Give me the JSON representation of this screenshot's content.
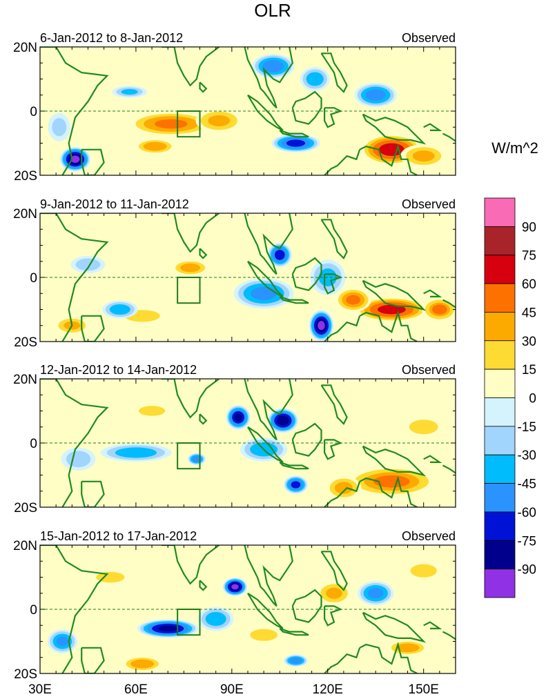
{
  "chart_data": {
    "type": "heatmap",
    "title": "OLR",
    "units_label": "W/m^2",
    "x_ticks": [
      {
        "label": "30E",
        "value": 30
      },
      {
        "label": "60E",
        "value": 60
      },
      {
        "label": "90E",
        "value": 90
      },
      {
        "label": "120E",
        "value": 120
      },
      {
        "label": "150E",
        "value": 150
      }
    ],
    "y_ticks": [
      {
        "label": "20N",
        "value": 20
      },
      {
        "label": "0",
        "value": 0
      },
      {
        "label": "20S",
        "value": -20
      }
    ],
    "xlim": [
      30,
      160
    ],
    "ylim": [
      -20,
      20
    ],
    "box_region": {
      "lon": [
        73,
        80
      ],
      "lat": [
        -8,
        0
      ]
    },
    "panels": [
      {
        "period": "6-Jan-2012 to 8-Jan-2012",
        "label": "Observed",
        "anomalies": [
          {
            "lon": 71,
            "lat": -4,
            "value": 52,
            "rx": 14,
            "ry": 4
          },
          {
            "lon": 86,
            "lat": -3,
            "value": 38,
            "rx": 8,
            "ry": 4
          },
          {
            "lon": 66,
            "lat": -11,
            "value": 30,
            "rx": 8,
            "ry": 3
          },
          {
            "lon": 140,
            "lat": -12,
            "value": 72,
            "rx": 10,
            "ry": 5
          },
          {
            "lon": 150,
            "lat": -14,
            "value": 35,
            "rx": 8,
            "ry": 4
          },
          {
            "lon": 41,
            "lat": -15,
            "value": -92,
            "rx": 5,
            "ry": 4
          },
          {
            "lon": 110,
            "lat": -10,
            "value": -70,
            "rx": 8,
            "ry": 3
          },
          {
            "lon": 103,
            "lat": 14,
            "value": -60,
            "rx": 7,
            "ry": 4
          },
          {
            "lon": 135,
            "lat": 5,
            "value": -58,
            "rx": 7,
            "ry": 4
          },
          {
            "lon": 116,
            "lat": 10,
            "value": -45,
            "rx": 5,
            "ry": 4
          },
          {
            "lon": 58,
            "lat": 6,
            "value": -35,
            "rx": 6,
            "ry": 2
          },
          {
            "lon": 36,
            "lat": -5,
            "value": -25,
            "rx": 4,
            "ry": 5
          }
        ]
      },
      {
        "period": "9-Jan-2012 to 11-Jan-2012",
        "label": "Observed",
        "anomalies": [
          {
            "lon": 140,
            "lat": -10,
            "value": 70,
            "rx": 12,
            "ry": 4
          },
          {
            "lon": 128,
            "lat": -7,
            "value": 50,
            "rx": 6,
            "ry": 4
          },
          {
            "lon": 155,
            "lat": -10,
            "value": 45,
            "rx": 6,
            "ry": 4
          },
          {
            "lon": 77,
            "lat": 3,
            "value": 32,
            "rx": 7,
            "ry": 3
          },
          {
            "lon": 62,
            "lat": -12,
            "value": 28,
            "rx": 9,
            "ry": 3
          },
          {
            "lon": 40,
            "lat": -15,
            "value": 38,
            "rx": 6,
            "ry": 3
          },
          {
            "lon": 118,
            "lat": -15,
            "value": -92,
            "rx": 4,
            "ry": 5
          },
          {
            "lon": 105,
            "lat": 7,
            "value": -72,
            "rx": 4,
            "ry": 4
          },
          {
            "lon": 100,
            "lat": -5,
            "value": -55,
            "rx": 10,
            "ry": 5
          },
          {
            "lon": 120,
            "lat": 0,
            "value": -40,
            "rx": 6,
            "ry": 6
          },
          {
            "lon": 55,
            "lat": -10,
            "value": -45,
            "rx": 6,
            "ry": 3
          },
          {
            "lon": 45,
            "lat": 4,
            "value": -30,
            "rx": 6,
            "ry": 3
          }
        ]
      },
      {
        "period": "12-Jan-2012 to 14-Jan-2012",
        "label": "Observed",
        "anomalies": [
          {
            "lon": 140,
            "lat": -12,
            "value": 48,
            "rx": 15,
            "ry": 5
          },
          {
            "lon": 125,
            "lat": -14,
            "value": 40,
            "rx": 6,
            "ry": 4
          },
          {
            "lon": 150,
            "lat": 5,
            "value": 25,
            "rx": 8,
            "ry": 4
          },
          {
            "lon": 65,
            "lat": 10,
            "value": 22,
            "rx": 8,
            "ry": 3
          },
          {
            "lon": 92,
            "lat": 8,
            "value": -80,
            "rx": 4,
            "ry": 4
          },
          {
            "lon": 106,
            "lat": 7,
            "value": -88,
            "rx": 5,
            "ry": 4
          },
          {
            "lon": 110,
            "lat": -13,
            "value": -70,
            "rx": 4,
            "ry": 3
          },
          {
            "lon": 100,
            "lat": -2,
            "value": -45,
            "rx": 8,
            "ry": 4
          },
          {
            "lon": 60,
            "lat": -3,
            "value": -45,
            "rx": 12,
            "ry": 3
          },
          {
            "lon": 42,
            "lat": -5,
            "value": -30,
            "rx": 6,
            "ry": 4
          },
          {
            "lon": 79,
            "lat": -5,
            "value": -60,
            "rx": 3,
            "ry": 2
          }
        ]
      },
      {
        "period": "15-Jan-2012 to 17-Jan-2012",
        "label": "Observed",
        "anomalies": [
          {
            "lon": 70,
            "lat": -6,
            "value": -82,
            "rx": 10,
            "ry": 3
          },
          {
            "lon": 91,
            "lat": 7,
            "value": -92,
            "rx": 4,
            "ry": 3
          },
          {
            "lon": 85,
            "lat": -3,
            "value": -45,
            "rx": 6,
            "ry": 4
          },
          {
            "lon": 135,
            "lat": 5,
            "value": -55,
            "rx": 6,
            "ry": 4
          },
          {
            "lon": 110,
            "lat": -16,
            "value": -60,
            "rx": 4,
            "ry": 2
          },
          {
            "lon": 37,
            "lat": -10,
            "value": -50,
            "rx": 5,
            "ry": 4
          },
          {
            "lon": 62,
            "lat": -17,
            "value": 30,
            "rx": 8,
            "ry": 3
          },
          {
            "lon": 122,
            "lat": 5,
            "value": 38,
            "rx": 6,
            "ry": 4
          },
          {
            "lon": 100,
            "lat": -8,
            "value": 28,
            "rx": 7,
            "ry": 3
          },
          {
            "lon": 145,
            "lat": -12,
            "value": 30,
            "rx": 8,
            "ry": 3
          },
          {
            "lon": 150,
            "lat": 12,
            "value": 22,
            "rx": 8,
            "ry": 4
          },
          {
            "lon": 52,
            "lat": 10,
            "value": 18,
            "rx": 8,
            "ry": 3
          }
        ]
      }
    ],
    "colorbar": {
      "levels": [
        -90,
        -75,
        -60,
        -45,
        -30,
        -15,
        0,
        15,
        30,
        45,
        60,
        75,
        90
      ],
      "labels": [
        "90",
        "75",
        "60",
        "45",
        "30",
        "15",
        "0",
        "-15",
        "-30",
        "-45",
        "-60",
        "-75",
        "-90"
      ],
      "colors_top_to_bottom": [
        "#f96bb5",
        "#a8242a",
        "#d6000f",
        "#fd7100",
        "#fdaa00",
        "#fedb32",
        "#fefec5",
        "#d4f3fd",
        "#a2d5fd",
        "#00bcfd",
        "#2b93fd",
        "#0012d6",
        "#00008c",
        "#9031e6"
      ]
    }
  }
}
